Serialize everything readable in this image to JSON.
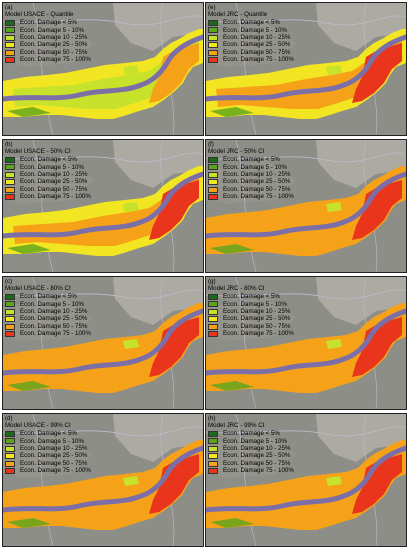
{
  "legend_items": [
    {
      "label": "Econ. Damage < 5%",
      "color": "#1a6a1a"
    },
    {
      "label": "Econ. Damage 5 - 10%",
      "color": "#5aa51c"
    },
    {
      "label": "Econ. Damage 10 - 25%",
      "color": "#c6e22a"
    },
    {
      "label": "Econ. Damage 25 - 50%",
      "color": "#f2e522"
    },
    {
      "label": "Econ. Damage 50 - 75%",
      "color": "#f5a219"
    },
    {
      "label": "Econ. Damage 75 - 100%",
      "color": "#e8351c"
    }
  ],
  "panels": [
    {
      "label": "(a)",
      "title": "Model USACE - Quantile",
      "severity": 0
    },
    {
      "label": "(e)",
      "title": "Model JRC - Quantile",
      "severity": 1
    },
    {
      "label": "(b)",
      "title": "Model USACE - 50% CI",
      "severity": 1
    },
    {
      "label": "(f)",
      "title": "Model JRC - 50% CI",
      "severity": 2
    },
    {
      "label": "(c)",
      "title": "Model USACE - 80% CI",
      "severity": 2
    },
    {
      "label": "(g)",
      "title": "Model JRC - 80% CI",
      "severity": 3
    },
    {
      "label": "(d)",
      "title": "Model USACE - 99% CI",
      "severity": 2
    },
    {
      "label": "(h)",
      "title": "Model JRC - 99% CI",
      "severity": 3
    }
  ],
  "map_colors": {
    "background": "#8e8e88",
    "urban_light": "#b9b6ae",
    "river": "#7c6fa8",
    "roads": "#c2b8cc"
  }
}
